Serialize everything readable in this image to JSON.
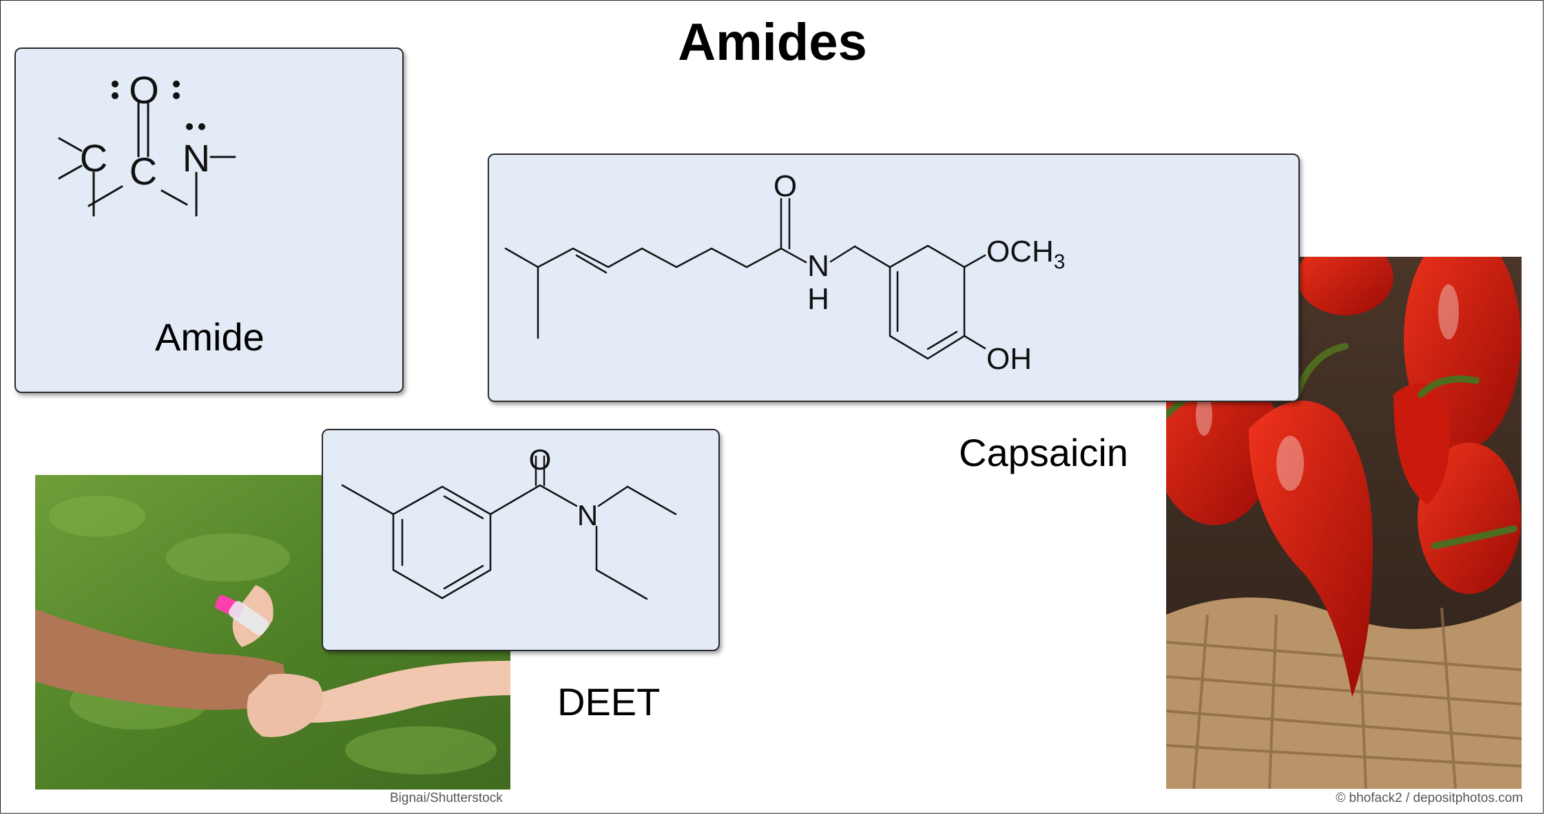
{
  "slide": {
    "title": "Amides"
  },
  "amide_card": {
    "label": "Amide",
    "atom_oxygen": "O",
    "atom_carbonyl_carbon": "C",
    "atom_alpha_carbon": "C",
    "atom_nitrogen": "N"
  },
  "capsaicin_card": {
    "label": "Capsaicin",
    "atom_oxygen": "O",
    "atom_n": "N",
    "atom_h": "H",
    "methoxy_group": "OCH",
    "methoxy_subscript": "3",
    "hydroxyl_group": "OH"
  },
  "deet_card": {
    "label": "DEET",
    "atom_oxygen": "O",
    "atom_nitrogen": "N"
  },
  "credits": {
    "grass_photo": "Bignai/Shutterstock",
    "pepper_photo": "© bhofack2 / depositphotos.com"
  },
  "colors": {
    "card_background": "#e3ebf6",
    "card_border": "#2a2a2a",
    "pepper_red": "#d21a0a",
    "grass_green": "#5b8c2e"
  }
}
